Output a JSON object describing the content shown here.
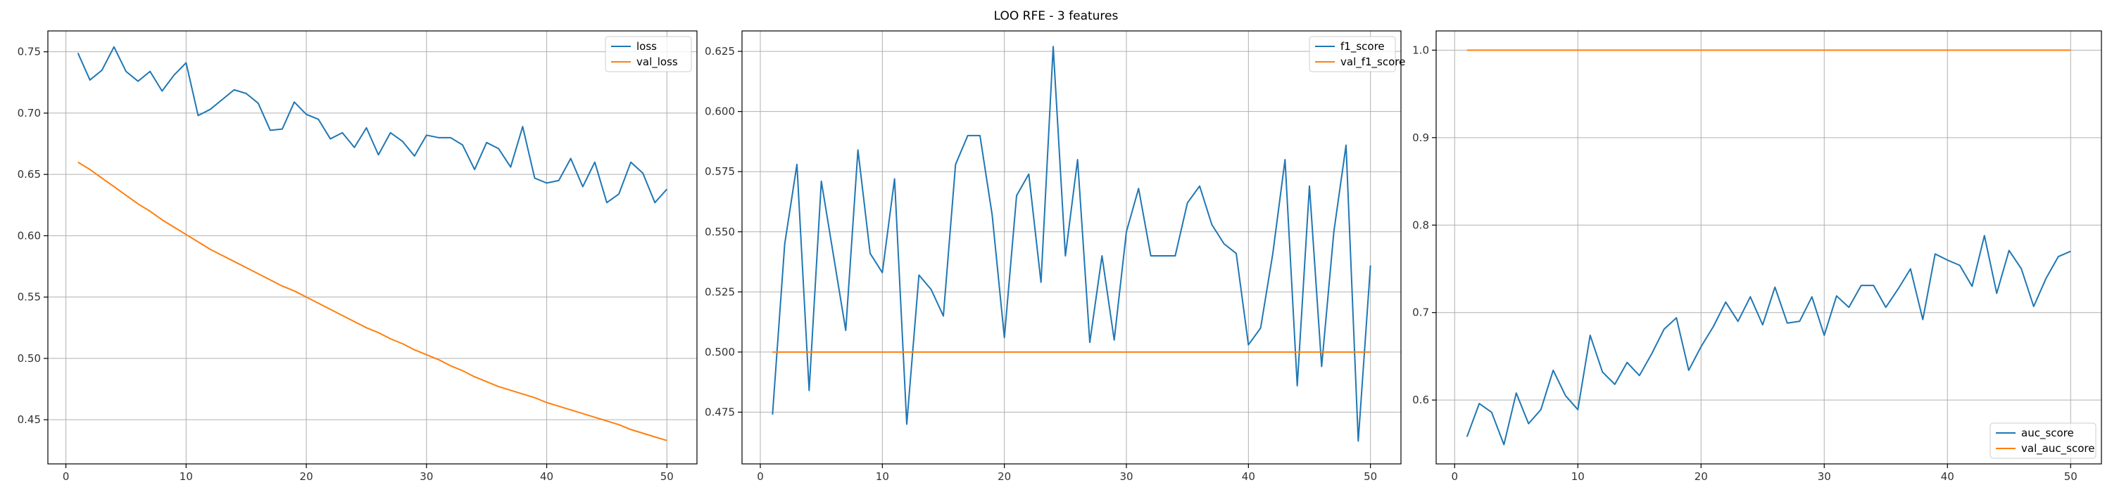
{
  "figure_title": "LOO RFE - 3 features",
  "colors": {
    "series0": "#1f77b4",
    "series1": "#ff7f0e"
  },
  "chart_data": [
    {
      "type": "line",
      "title": "",
      "xlabel": "",
      "ylabel": "",
      "xlim": [
        -1.5,
        52.5
      ],
      "ylim": [
        0.414,
        0.767
      ],
      "xticks": [
        0,
        10,
        20,
        30,
        40,
        50
      ],
      "yticks": [
        0.45,
        0.5,
        0.55,
        0.6,
        0.65,
        0.7,
        0.75
      ],
      "ytick_labels": [
        "0.45",
        "0.50",
        "0.55",
        "0.60",
        "0.65",
        "0.70",
        "0.75"
      ],
      "grid": true,
      "legend": "upper-right",
      "x": [
        1,
        2,
        3,
        4,
        5,
        6,
        7,
        8,
        9,
        10,
        11,
        12,
        13,
        14,
        15,
        16,
        17,
        18,
        19,
        20,
        21,
        22,
        23,
        24,
        25,
        26,
        27,
        28,
        29,
        30,
        31,
        32,
        33,
        34,
        35,
        36,
        37,
        38,
        39,
        40,
        41,
        42,
        43,
        44,
        45,
        46,
        47,
        48,
        49,
        50
      ],
      "series": [
        {
          "name": "loss",
          "values": [
            0.749,
            0.727,
            0.735,
            0.754,
            0.734,
            0.726,
            0.734,
            0.718,
            0.731,
            0.741,
            0.698,
            0.703,
            0.711,
            0.719,
            0.716,
            0.708,
            0.686,
            0.687,
            0.709,
            0.699,
            0.695,
            0.679,
            0.684,
            0.672,
            0.688,
            0.666,
            0.684,
            0.677,
            0.665,
            0.682,
            0.68,
            0.68,
            0.674,
            0.654,
            0.676,
            0.671,
            0.656,
            0.689,
            0.647,
            0.643,
            0.645,
            0.663,
            0.64,
            0.66,
            0.627,
            0.634,
            0.66,
            0.651,
            0.627,
            0.638
          ]
        },
        {
          "name": "val_loss",
          "values": [
            0.66,
            0.654,
            0.647,
            0.64,
            0.633,
            0.626,
            0.62,
            0.613,
            0.607,
            0.601,
            0.595,
            0.589,
            0.584,
            0.579,
            0.574,
            0.569,
            0.564,
            0.559,
            0.555,
            0.55,
            0.545,
            0.54,
            0.535,
            0.53,
            0.525,
            0.521,
            0.516,
            0.512,
            0.507,
            0.503,
            0.499,
            0.494,
            0.49,
            0.485,
            0.481,
            0.477,
            0.474,
            0.471,
            0.468,
            0.464,
            0.461,
            0.458,
            0.455,
            0.452,
            0.449,
            0.446,
            0.442,
            0.439,
            0.436,
            0.433
          ]
        }
      ]
    },
    {
      "type": "line",
      "title": "",
      "xlabel": "",
      "ylabel": "",
      "xlim": [
        -1.5,
        52.5
      ],
      "ylim": [
        0.4535,
        0.6335
      ],
      "xticks": [
        0,
        10,
        20,
        30,
        40,
        50
      ],
      "yticks": [
        0.475,
        0.5,
        0.525,
        0.55,
        0.575,
        0.6,
        0.625
      ],
      "ytick_labels": [
        "0.475",
        "0.500",
        "0.525",
        "0.550",
        "0.575",
        "0.600",
        "0.625"
      ],
      "grid": true,
      "legend": "upper-right",
      "x": [
        1,
        2,
        3,
        4,
        5,
        6,
        7,
        8,
        9,
        10,
        11,
        12,
        13,
        14,
        15,
        16,
        17,
        18,
        19,
        20,
        21,
        22,
        23,
        24,
        25,
        26,
        27,
        28,
        29,
        30,
        31,
        32,
        33,
        34,
        35,
        36,
        37,
        38,
        39,
        40,
        41,
        42,
        43,
        44,
        45,
        46,
        47,
        48,
        49,
        50
      ],
      "series": [
        {
          "name": "f1_score",
          "values": [
            0.474,
            0.545,
            0.578,
            0.484,
            0.571,
            0.54,
            0.509,
            0.584,
            0.541,
            0.533,
            0.572,
            0.47,
            0.532,
            0.526,
            0.515,
            0.578,
            0.59,
            0.59,
            0.557,
            0.506,
            0.565,
            0.574,
            0.529,
            0.627,
            0.54,
            0.58,
            0.504,
            0.54,
            0.505,
            0.55,
            0.568,
            0.54,
            0.54,
            0.54,
            0.562,
            0.569,
            0.553,
            0.545,
            0.541,
            0.503,
            0.51,
            0.541,
            0.58,
            0.486,
            0.569,
            0.494,
            0.55,
            0.586,
            0.463,
            0.536
          ]
        },
        {
          "name": "val_f1_score",
          "values": [
            0.5,
            0.5,
            0.5,
            0.5,
            0.5,
            0.5,
            0.5,
            0.5,
            0.5,
            0.5,
            0.5,
            0.5,
            0.5,
            0.5,
            0.5,
            0.5,
            0.5,
            0.5,
            0.5,
            0.5,
            0.5,
            0.5,
            0.5,
            0.5,
            0.5,
            0.5,
            0.5,
            0.5,
            0.5,
            0.5,
            0.5,
            0.5,
            0.5,
            0.5,
            0.5,
            0.5,
            0.5,
            0.5,
            0.5,
            0.5,
            0.5,
            0.5,
            0.5,
            0.5,
            0.5,
            0.5,
            0.5,
            0.5,
            0.5,
            0.5
          ]
        }
      ]
    },
    {
      "type": "line",
      "title": "",
      "xlabel": "",
      "ylabel": "",
      "xlim": [
        -1.5,
        52.5
      ],
      "ylim": [
        0.527,
        1.022
      ],
      "xticks": [
        0,
        10,
        20,
        30,
        40,
        50
      ],
      "yticks": [
        0.6,
        0.7,
        0.8,
        0.9,
        1.0
      ],
      "ytick_labels": [
        "0.6",
        "0.7",
        "0.8",
        "0.9",
        "1.0"
      ],
      "grid": true,
      "legend": "lower-right",
      "x": [
        1,
        2,
        3,
        4,
        5,
        6,
        7,
        8,
        9,
        10,
        11,
        12,
        13,
        14,
        15,
        16,
        17,
        18,
        19,
        20,
        21,
        22,
        23,
        24,
        25,
        26,
        27,
        28,
        29,
        30,
        31,
        32,
        33,
        34,
        35,
        36,
        37,
        38,
        39,
        40,
        41,
        42,
        43,
        44,
        45,
        46,
        47,
        48,
        49,
        50
      ],
      "series": [
        {
          "name": "auc_score",
          "values": [
            0.558,
            0.596,
            0.586,
            0.549,
            0.608,
            0.573,
            0.589,
            0.634,
            0.605,
            0.589,
            0.674,
            0.632,
            0.618,
            0.643,
            0.628,
            0.653,
            0.681,
            0.694,
            0.634,
            0.661,
            0.684,
            0.712,
            0.69,
            0.718,
            0.686,
            0.729,
            0.688,
            0.69,
            0.718,
            0.674,
            0.719,
            0.706,
            0.731,
            0.731,
            0.706,
            0.727,
            0.75,
            0.692,
            0.767,
            0.76,
            0.754,
            0.73,
            0.788,
            0.722,
            0.771,
            0.75,
            0.707,
            0.739,
            0.764,
            0.77
          ]
        },
        {
          "name": "val_auc_score",
          "values": [
            1.0,
            1.0,
            1.0,
            1.0,
            1.0,
            1.0,
            1.0,
            1.0,
            1.0,
            1.0,
            1.0,
            1.0,
            1.0,
            1.0,
            1.0,
            1.0,
            1.0,
            1.0,
            1.0,
            1.0,
            1.0,
            1.0,
            1.0,
            1.0,
            1.0,
            1.0,
            1.0,
            1.0,
            1.0,
            1.0,
            1.0,
            1.0,
            1.0,
            1.0,
            1.0,
            1.0,
            1.0,
            1.0,
            1.0,
            1.0,
            1.0,
            1.0,
            1.0,
            1.0,
            1.0,
            1.0,
            1.0,
            1.0,
            1.0,
            1.0
          ]
        }
      ]
    }
  ]
}
